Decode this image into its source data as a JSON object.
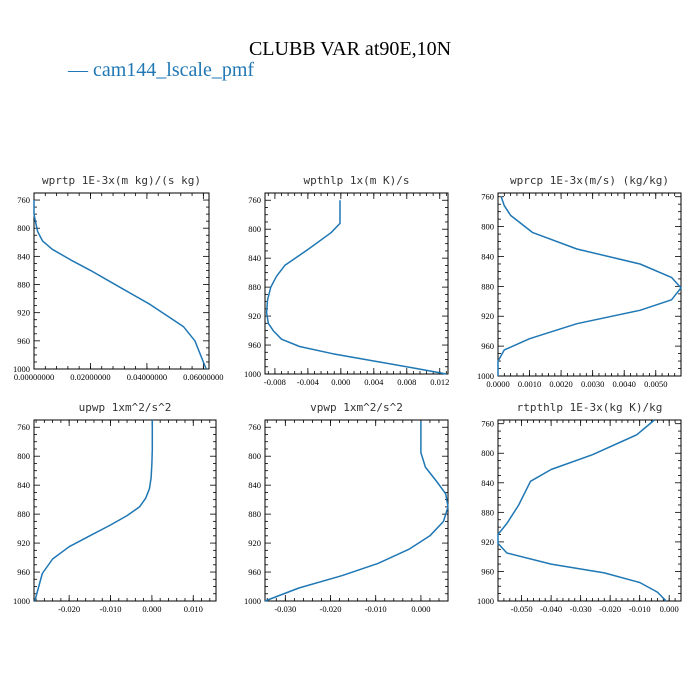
{
  "figure": {
    "title": "CLUBB VAR at90E,10N",
    "legend": {
      "label": "— cam144_lscale_pmf",
      "color": "#1f77b4"
    }
  },
  "chart_data": [
    {
      "type": "line",
      "title": "wprtp  1E-3x(m kg)/(s kg)",
      "series": [
        {
          "name": "cam144_lscale_pmf",
          "color": "#1f77b4",
          "x": [
            0.0,
            0.0,
            0.0005,
            0.0013,
            0.003,
            0.0065,
            0.013,
            0.02,
            0.027,
            0.034,
            0.041,
            0.047,
            0.053,
            0.057,
            0.059,
            0.061
          ],
          "y": [
            760,
            780,
            790,
            805,
            818,
            830,
            845,
            860,
            876,
            892,
            908,
            924,
            940,
            960,
            980,
            1000
          ]
        }
      ],
      "xlim": [
        0.0,
        0.062
      ],
      "ylim": [
        1000,
        750
      ],
      "xticks": [
        0.0,
        0.02,
        0.04,
        0.06
      ],
      "xticklabels": [
        "0.00000000",
        "0.02000000",
        "0.04000000",
        "0.06000000"
      ],
      "yticks": [
        760,
        800,
        840,
        880,
        920,
        960,
        1000
      ],
      "yticklabels": [
        "760",
        "800",
        "840",
        "880",
        "920",
        "960",
        "1000"
      ]
    },
    {
      "type": "line",
      "title": "wpthlp  1x(m K)/s",
      "series": [
        {
          "name": "cam144_lscale_pmf",
          "color": "#1f77b4",
          "x": [
            -0.0001,
            -0.0001,
            -0.0001,
            -0.0012,
            -0.004,
            -0.0068,
            -0.0078,
            -0.0085,
            -0.0089,
            -0.009,
            -0.0088,
            -0.0082,
            -0.0072,
            -0.005,
            -0.001,
            0.004,
            0.009,
            0.0128
          ],
          "y": [
            760,
            780,
            792,
            805,
            828,
            850,
            865,
            880,
            898,
            915,
            930,
            940,
            952,
            962,
            972,
            982,
            992,
            1000
          ]
        }
      ],
      "xlim": [
        -0.0092,
        0.013
      ],
      "ylim": [
        1000,
        750
      ],
      "xticks": [
        -0.008,
        -0.004,
        0.0,
        0.004,
        0.008,
        0.012
      ],
      "xticklabels": [
        "-0.008",
        "-0.004",
        "0.000",
        "0.004",
        "0.008",
        "0.012"
      ],
      "yticks": [
        760,
        800,
        840,
        880,
        920,
        960,
        1000
      ],
      "yticklabels": [
        "760",
        "800",
        "840",
        "880",
        "920",
        "960",
        "1000"
      ]
    },
    {
      "type": "line",
      "title": "wprcp  1E-3x(m/s) (kg/kg)",
      "series": [
        {
          "name": "cam144_lscale_pmf",
          "color": "#1f77b4",
          "x": [
            0.0001,
            0.0002,
            0.0004,
            0.0011,
            0.0025,
            0.0045,
            0.0055,
            0.0058,
            0.0055,
            0.0045,
            0.0025,
            0.001,
            0.0002,
            0.0,
            0.0
          ],
          "y": [
            760,
            772,
            785,
            808,
            830,
            850,
            868,
            882,
            898,
            912,
            930,
            950,
            965,
            980,
            1000
          ]
        }
      ],
      "xlim": [
        0.0,
        0.0058
      ],
      "ylim": [
        1000,
        755
      ],
      "xticks": [
        0.0,
        0.001,
        0.002,
        0.003,
        0.004,
        0.005
      ],
      "xticklabels": [
        "0.0000",
        "0.0010",
        "0.0020",
        "0.0030",
        "0.0040",
        "0.0050"
      ],
      "yticks": [
        760,
        800,
        840,
        880,
        920,
        960,
        1000
      ],
      "yticklabels": [
        "760",
        "800",
        "840",
        "880",
        "920",
        "960",
        "1000"
      ]
    },
    {
      "type": "line",
      "title": "upwp  1xm^2/s^2",
      "series": [
        {
          "name": "cam144_lscale_pmf",
          "color": "#1f77b4",
          "x": [
            0.0001,
            0.0001,
            0.0,
            -0.0002,
            -0.0006,
            -0.0015,
            -0.003,
            -0.006,
            -0.01,
            -0.015,
            -0.02,
            -0.024,
            -0.0265,
            -0.0283
          ],
          "y": [
            750,
            790,
            810,
            830,
            845,
            858,
            870,
            882,
            895,
            910,
            925,
            942,
            962,
            1000
          ]
        }
      ],
      "xlim": [
        -0.0285,
        0.0155
      ],
      "ylim": [
        1000,
        750
      ],
      "xticks": [
        -0.02,
        -0.01,
        0.0,
        0.01
      ],
      "xticklabels": [
        "-0.020",
        "-0.010",
        "0.000",
        "0.010"
      ],
      "yticks": [
        760,
        800,
        840,
        880,
        920,
        960,
        1000
      ],
      "yticklabels": [
        "760",
        "800",
        "840",
        "880",
        "920",
        "960",
        "1000"
      ]
    },
    {
      "type": "line",
      "title": "vpwp  1xm^2/s^2",
      "series": [
        {
          "name": "cam144_lscale_pmf",
          "color": "#1f77b4",
          "x": [
            0.0,
            0.0,
            0.001,
            0.0035,
            0.0055,
            0.006,
            0.005,
            0.002,
            -0.0025,
            -0.0095,
            -0.0175,
            -0.027,
            -0.0345
          ],
          "y": [
            752,
            795,
            815,
            835,
            852,
            870,
            890,
            910,
            928,
            948,
            965,
            982,
            1000
          ]
        }
      ],
      "xlim": [
        -0.0345,
        0.006
      ],
      "ylim": [
        1000,
        750
      ],
      "xticks": [
        -0.03,
        -0.02,
        -0.01,
        0.0
      ],
      "xticklabels": [
        "-0.030",
        "-0.020",
        "-0.010",
        "0.000"
      ],
      "yticks": [
        760,
        800,
        840,
        880,
        920,
        960,
        1000
      ],
      "yticklabels": [
        "760",
        "800",
        "840",
        "880",
        "920",
        "960",
        "1000"
      ]
    },
    {
      "type": "line",
      "title": "rtpthlp  1E-3x(kg K)/kg",
      "series": [
        {
          "name": "cam144_lscale_pmf",
          "color": "#1f77b4",
          "x": [
            -0.005,
            -0.011,
            -0.026,
            -0.04,
            -0.047,
            -0.051,
            -0.055,
            -0.058,
            -0.058,
            -0.055,
            -0.04,
            -0.022,
            -0.01,
            -0.004,
            -0.001
          ],
          "y": [
            755,
            775,
            802,
            822,
            838,
            870,
            895,
            910,
            922,
            935,
            950,
            962,
            975,
            988,
            1000
          ]
        }
      ],
      "xlim": [
        -0.058,
        0.004
      ],
      "ylim": [
        1000,
        755
      ],
      "xticks": [
        -0.05,
        -0.04,
        -0.03,
        -0.02,
        -0.01,
        0.0
      ],
      "xticklabels": [
        "-0.050",
        "-0.040",
        "-0.030",
        "-0.020",
        "-0.010",
        "0.000"
      ],
      "yticks": [
        760,
        800,
        840,
        880,
        920,
        960,
        1000
      ],
      "yticklabels": [
        "760",
        "800",
        "840",
        "880",
        "920",
        "960",
        "1000"
      ]
    }
  ]
}
